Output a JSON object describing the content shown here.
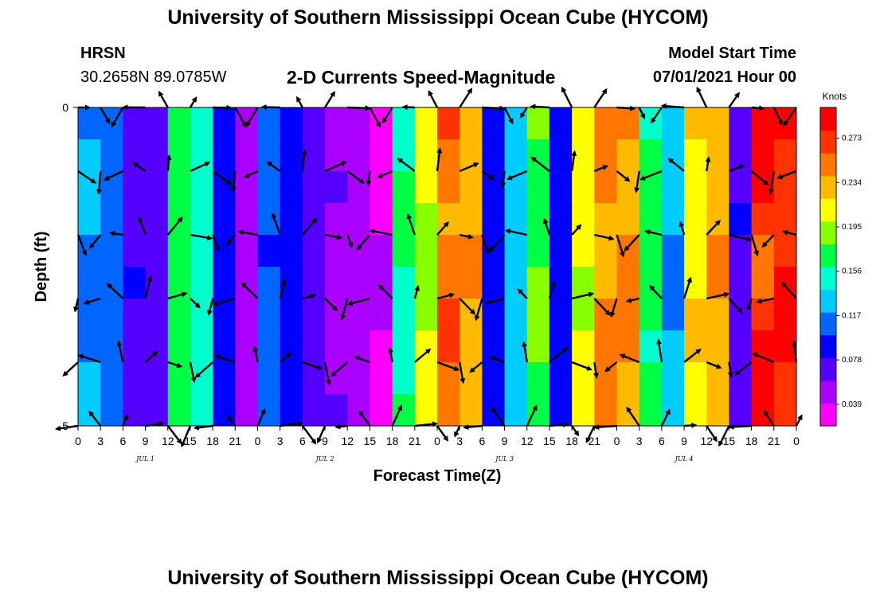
{
  "header": {
    "title": "University of Southern Mississippi Ocean Cube (HYCOM)",
    "station": "HRSN",
    "coords": "30.2658N  89.0785W",
    "plot_title": "2-D Currents Speed-Magnitude",
    "model_label": "Model Start Time",
    "model_time": "07/01/2021 Hour 00"
  },
  "footer": {
    "title": "University of Southern Mississippi Ocean Cube (HYCOM)"
  },
  "chart_data": {
    "type": "heatmap",
    "xlabel": "Forecast Time(Z)",
    "ylabel": "Depth (ft)",
    "x_tick_labels": [
      "0",
      "3",
      "6",
      "9",
      "12",
      "15",
      "18",
      "21",
      "0",
      "3",
      "6",
      "9",
      "12",
      "15",
      "18",
      "21",
      "0",
      "3",
      "6",
      "9",
      "12",
      "15",
      "18",
      "21",
      "0",
      "3",
      "6",
      "9",
      "12",
      "15",
      "18",
      "21",
      "0"
    ],
    "date_labels": [
      "JUL 1",
      "JUL 2",
      "JUL 3",
      "JUL 4"
    ],
    "y_range": [
      0,
      5
    ],
    "y_tick_labels": [
      "0",
      "5"
    ],
    "colorbar": {
      "unit": "Knots",
      "ticks": [
        "0.273",
        "0.234",
        "0.195",
        "0.156",
        "0.117",
        "0.078",
        "0.039"
      ],
      "range": [
        0.02,
        0.3
      ],
      "colors": [
        "#ff00ff",
        "#aa00ff",
        "#5500ff",
        "#0000ff",
        "#0066ff",
        "#00ccff",
        "#00ffcc",
        "#00ff44",
        "#88ff00",
        "#ffff00",
        "#ffbb00",
        "#ff7700",
        "#ff3300",
        "#ff0000"
      ]
    },
    "time_hours": [
      0,
      3,
      6,
      9,
      12,
      15,
      18,
      21,
      24,
      27,
      30,
      33,
      36,
      39,
      42,
      45,
      48,
      51,
      54,
      57,
      60,
      63,
      66,
      69,
      72,
      75,
      78,
      81,
      84,
      87,
      90,
      93,
      96
    ],
    "speed_profile_knots": [
      0.115,
      0.11,
      0.07,
      0.06,
      0.17,
      0.15,
      0.09,
      0.04,
      0.1,
      0.09,
      0.06,
      0.05,
      0.04,
      0.03,
      0.16,
      0.2,
      0.26,
      0.24,
      0.08,
      0.13,
      0.18,
      0.085,
      0.21,
      0.25,
      0.25,
      0.17,
      0.12,
      0.22,
      0.24,
      0.07,
      0.28,
      0.29,
      0.295
    ],
    "depth_layers_ft": [
      0,
      0.5,
      1,
      1.5,
      2,
      2.5,
      3,
      3.5,
      4,
      4.5,
      5
    ]
  }
}
